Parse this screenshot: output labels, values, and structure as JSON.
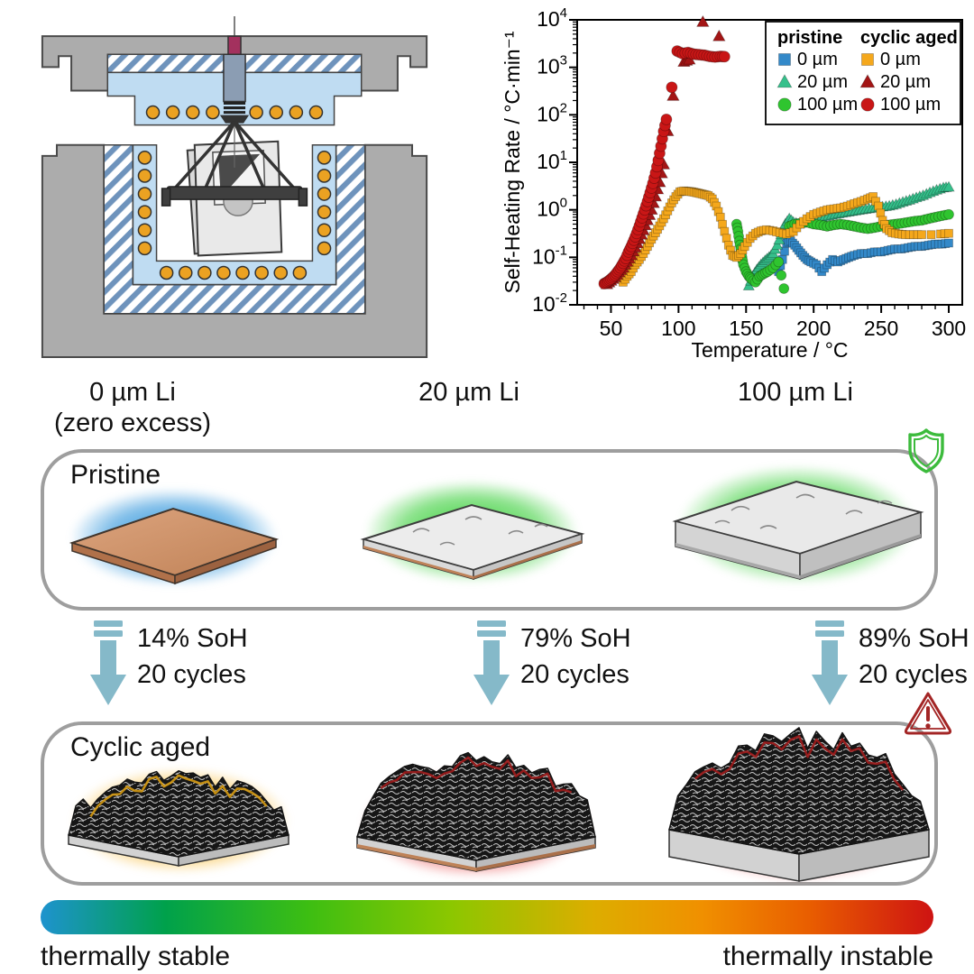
{
  "figure": {
    "apparatus_name": "accelerating-rate-calorimeter-schematic",
    "columns": [
      {
        "line1": "0 µm Li",
        "line2": "(zero excess)"
      },
      {
        "line1": "20 µm Li",
        "line2": ""
      },
      {
        "line1": "100 µm Li",
        "line2": ""
      }
    ],
    "pristine_label": "Pristine",
    "cyclic_label": "Cyclic aged",
    "transitions": [
      {
        "soh": "14% SoH",
        "cycles": "20 cycles"
      },
      {
        "soh": "79% SoH",
        "cycles": "20 cycles"
      },
      {
        "soh": "89% SoH",
        "cycles": "20 cycles"
      }
    ],
    "scale": {
      "left": "thermally stable",
      "right": "thermally instable"
    },
    "icons": {
      "shield": "shield-safe-icon",
      "warning": "warning-triangle-icon"
    },
    "colors": {
      "arrow": "#85B9C9",
      "shield": "#3CBB3C",
      "warning": "#A32525",
      "box_border": "#9E9E9E",
      "glows": {
        "pristine": [
          "#1E8CD8",
          "#2ECC2E",
          "#2ECC2E"
        ],
        "cyclic": [
          "#F5A800",
          "#E01212",
          "#E01212"
        ]
      },
      "gradient_bar": [
        "#1E93CE",
        "#00A14B",
        "#3DBE12",
        "#8CC700",
        "#DDAD00",
        "#F09000",
        "#E95E00",
        "#CE1312"
      ]
    }
  },
  "chart_data": {
    "type": "scatter",
    "title": "",
    "xlabel": "Temperature / °C",
    "ylabel": "Self-Heating Rate / °C·min⁻¹",
    "xlim": [
      25,
      310
    ],
    "ylog": [
      -2,
      4
    ],
    "x_ticks": [
      50,
      100,
      150,
      200,
      250,
      300
    ],
    "y_tick_exponents": [
      -2,
      -1,
      0,
      1,
      2,
      3,
      4
    ],
    "grid": false,
    "legend_position": "top-right",
    "legend": {
      "groups": [
        {
          "title": "pristine",
          "items": [
            {
              "label": "0 µm",
              "marker": "square",
              "color": "#3389C9"
            },
            {
              "label": "20 µm",
              "marker": "triangle",
              "color": "#35C08B"
            },
            {
              "label": "100 µm",
              "marker": "circle",
              "color": "#2FC52F"
            }
          ]
        },
        {
          "title": "cyclic aged",
          "items": [
            {
              "label": "0 µm",
              "marker": "square",
              "color": "#F5A81C"
            },
            {
              "label": "20 µm",
              "marker": "triangle",
              "color": "#A31515"
            },
            {
              "label": "100 µm",
              "marker": "circle",
              "color": "#C91616"
            }
          ]
        }
      ]
    },
    "series": [
      {
        "name": "pristine 0 µm",
        "marker": "square",
        "color": "#3389C9",
        "size": 9,
        "x": [
          174,
          177,
          180,
          183,
          186,
          189,
          192,
          195,
          198,
          202,
          206,
          210,
          214,
          218,
          222,
          226,
          230,
          235,
          240,
          245,
          250,
          255,
          260,
          265,
          270,
          275,
          280,
          285,
          290,
          295,
          300
        ],
        "y": [
          0.05,
          0.09,
          0.2,
          0.22,
          0.18,
          0.14,
          0.11,
          0.09,
          0.08,
          0.07,
          0.05,
          0.07,
          0.09,
          0.08,
          0.09,
          0.1,
          0.11,
          0.12,
          0.12,
          0.13,
          0.13,
          0.14,
          0.15,
          0.15,
          0.16,
          0.17,
          0.17,
          0.18,
          0.19,
          0.19,
          0.2
        ]
      },
      {
        "name": "pristine 20 µm",
        "marker": "triangle",
        "color": "#35C08B",
        "size": 10,
        "x": [
          152,
          155,
          158,
          161,
          164,
          167,
          170,
          173,
          176,
          179,
          182,
          185,
          189,
          193,
          197,
          201,
          206,
          211,
          216,
          221,
          226,
          231,
          236,
          241,
          246,
          251,
          256,
          261,
          266,
          271,
          276,
          281,
          286,
          291,
          296,
          300
        ],
        "y": [
          0.025,
          0.04,
          0.055,
          0.07,
          0.085,
          0.1,
          0.12,
          0.18,
          0.3,
          0.5,
          0.65,
          0.55,
          0.5,
          0.55,
          0.6,
          0.65,
          0.7,
          0.75,
          0.8,
          0.85,
          0.9,
          0.95,
          1.0,
          1.05,
          1.1,
          1.15,
          1.2,
          1.3,
          1.45,
          1.6,
          1.8,
          2.0,
          2.3,
          2.6,
          2.9,
          3.0
        ]
      },
      {
        "name": "pristine 100 µm",
        "marker": "circle",
        "color": "#2FC52F",
        "size": 10,
        "x": [
          143,
          144,
          145,
          146,
          147,
          148,
          150,
          152,
          154,
          157,
          160,
          163,
          166,
          170,
          174,
          178,
          182,
          186,
          190,
          195,
          200,
          205,
          210,
          215,
          220,
          225,
          230,
          235,
          240,
          245,
          250,
          255,
          260,
          265,
          270,
          275,
          280,
          285,
          290,
          295,
          300
        ],
        "y": [
          0.5,
          0.35,
          0.22,
          0.15,
          0.1,
          0.07,
          0.05,
          0.04,
          0.035,
          0.03,
          0.04,
          0.045,
          0.05,
          0.06,
          0.08,
          0.022,
          0.45,
          0.5,
          0.52,
          0.55,
          0.5,
          0.48,
          0.45,
          0.48,
          0.5,
          0.48,
          0.45,
          0.42,
          0.4,
          0.42,
          0.45,
          0.48,
          0.5,
          0.52,
          0.55,
          0.58,
          0.6,
          0.65,
          0.7,
          0.75,
          0.8
        ]
      },
      {
        "name": "cyclic aged 0 µm",
        "marker": "square",
        "color": "#F5A81C",
        "size": 9,
        "x": [
          59,
          62,
          65,
          68,
          71,
          74,
          77,
          80,
          83,
          86,
          89,
          92,
          95,
          98,
          101,
          104,
          107,
          110,
          113,
          116,
          119,
          122,
          125,
          128,
          131,
          134,
          137,
          140,
          143,
          146,
          149,
          153,
          157,
          161,
          165,
          170,
          175,
          180,
          185,
          190,
          195,
          200,
          205,
          210,
          215,
          220,
          225,
          230,
          235,
          240,
          244,
          248,
          251,
          254,
          258,
          263,
          268,
          274,
          280,
          287,
          294,
          300
        ],
        "y": [
          0.03,
          0.04,
          0.05,
          0.07,
          0.09,
          0.12,
          0.17,
          0.24,
          0.33,
          0.46,
          0.65,
          0.95,
          1.4,
          1.9,
          2.4,
          2.5,
          2.45,
          2.4,
          2.3,
          2.2,
          2.1,
          2.0,
          1.7,
          1.2,
          0.7,
          0.35,
          0.18,
          0.11,
          0.1,
          0.12,
          0.17,
          0.25,
          0.32,
          0.36,
          0.38,
          0.36,
          0.33,
          0.31,
          0.35,
          0.5,
          0.65,
          0.8,
          0.9,
          1.0,
          1.05,
          1.1,
          1.2,
          1.35,
          1.5,
          1.7,
          1.9,
          1.2,
          0.6,
          0.4,
          0.33,
          0.31,
          0.3,
          0.3,
          0.3,
          0.3,
          0.31,
          0.32
        ]
      },
      {
        "name": "cyclic aged 20 µm",
        "marker": "triangle",
        "color": "#A31515",
        "size": 11,
        "x": [
          47,
          50,
          53,
          56,
          59,
          62,
          65,
          68,
          71,
          74,
          77,
          80,
          83,
          86,
          89,
          92,
          96,
          104,
          108,
          118,
          130
        ],
        "y": [
          0.027,
          0.032,
          0.038,
          0.048,
          0.06,
          0.08,
          0.11,
          0.16,
          0.24,
          0.37,
          0.6,
          1.0,
          1.9,
          3.8,
          9,
          45,
          250,
          1300,
          1450,
          9000,
          4500
        ]
      },
      {
        "name": "cyclic aged 100 µm",
        "marker": "circle",
        "color": "#C91616",
        "size": 11,
        "x": [
          45,
          47,
          49,
          51,
          53,
          55,
          57,
          59,
          61,
          63,
          65,
          67,
          69,
          71,
          73,
          75,
          77,
          79,
          81,
          83,
          85,
          87,
          89,
          91,
          95,
          99,
          103,
          107,
          111,
          115,
          119,
          123,
          127,
          131,
          134
        ],
        "y": [
          0.028,
          0.03,
          0.033,
          0.037,
          0.042,
          0.05,
          0.06,
          0.075,
          0.095,
          0.13,
          0.17,
          0.23,
          0.32,
          0.46,
          0.68,
          1.0,
          1.5,
          2.3,
          3.6,
          6,
          11,
          22,
          45,
          80,
          380,
          2200,
          1950,
          2050,
          1900,
          1850,
          1800,
          1700,
          1650,
          1700,
          1680
        ]
      }
    ]
  }
}
